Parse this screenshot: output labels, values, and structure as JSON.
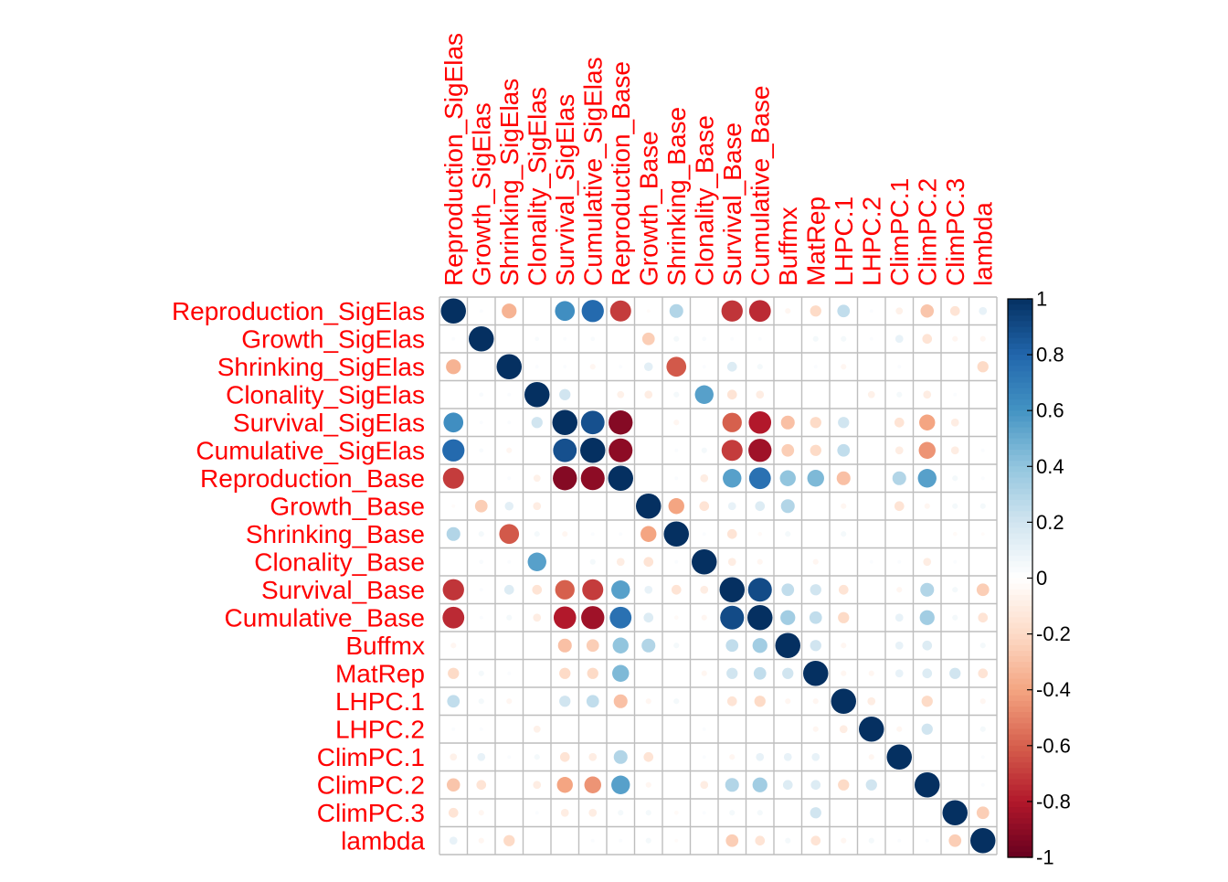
{
  "chart_data": {
    "type": "heatmap",
    "method": "circle",
    "order": "original",
    "variables": [
      "Reproduction_SigElas",
      "Growth_SigElas",
      "Shrinking_SigElas",
      "Clonality_SigElas",
      "Survival_SigElas",
      "Cumulative_SigElas",
      "Reproduction_Base",
      "Growth_Base",
      "Shrinking_Base",
      "Clonality_Base",
      "Survival_Base",
      "Cumulative_Base",
      "Buffmx",
      "MatRep",
      "LHPC.1",
      "LHPC.2",
      "ClimPC.1",
      "ClimPC.2",
      "ClimPC.3",
      "lambda"
    ],
    "matrix": [
      [
        1.0,
        0.02,
        -0.35,
        0.0,
        0.62,
        0.78,
        -0.7,
        -0.02,
        0.3,
        0.0,
        -0.72,
        -0.75,
        -0.05,
        -0.2,
        0.25,
        0.02,
        -0.08,
        -0.28,
        -0.15,
        0.1
      ],
      [
        0.02,
        1.0,
        0.0,
        0.03,
        0.02,
        0.03,
        0.0,
        -0.25,
        0.05,
        0.03,
        0.02,
        0.02,
        0.0,
        0.05,
        0.05,
        0.02,
        0.1,
        -0.15,
        -0.05,
        -0.05
      ],
      [
        -0.35,
        0.0,
        1.0,
        0.02,
        0.02,
        -0.05,
        0.02,
        0.12,
        -0.62,
        0.02,
        0.15,
        0.05,
        0.0,
        0.02,
        -0.05,
        0.0,
        0.02,
        0.0,
        0.0,
        -0.2
      ],
      [
        0.0,
        0.03,
        0.02,
        1.0,
        0.2,
        0.0,
        -0.08,
        -0.1,
        0.05,
        0.55,
        -0.15,
        -0.1,
        0.0,
        0.0,
        0.0,
        -0.08,
        0.05,
        -0.1,
        0.02,
        0.0
      ],
      [
        0.62,
        0.02,
        0.02,
        0.2,
        1.0,
        0.88,
        -0.92,
        0.0,
        -0.05,
        0.0,
        -0.6,
        -0.8,
        -0.3,
        -0.2,
        0.2,
        0.0,
        -0.15,
        -0.4,
        -0.1,
        0.0
      ],
      [
        0.78,
        0.03,
        -0.05,
        0.0,
        0.88,
        1.0,
        -0.9,
        0.0,
        0.02,
        0.05,
        -0.7,
        -0.85,
        -0.25,
        -0.2,
        0.25,
        0.0,
        -0.1,
        -0.45,
        -0.1,
        0.02
      ],
      [
        -0.7,
        0.0,
        0.02,
        -0.08,
        -0.92,
        -0.9,
        1.0,
        0.0,
        0.02,
        -0.1,
        0.55,
        0.75,
        0.4,
        0.45,
        -0.3,
        0.0,
        0.3,
        0.55,
        0.05,
        0.02
      ],
      [
        -0.02,
        -0.25,
        0.12,
        -0.1,
        0.0,
        0.0,
        0.0,
        1.0,
        -0.4,
        -0.15,
        0.1,
        0.15,
        0.3,
        0.0,
        -0.05,
        0.0,
        -0.15,
        -0.05,
        0.05,
        0.05
      ],
      [
        0.3,
        0.05,
        -0.62,
        0.05,
        -0.05,
        0.02,
        0.02,
        -0.4,
        1.0,
        0.02,
        -0.15,
        -0.03,
        0.05,
        0.0,
        0.05,
        0.0,
        0.0,
        0.0,
        -0.03,
        -0.02
      ],
      [
        0.0,
        0.03,
        0.02,
        0.55,
        0.0,
        0.05,
        -0.1,
        -0.15,
        0.02,
        1.0,
        -0.1,
        -0.05,
        0.0,
        -0.05,
        0.0,
        0.02,
        0.02,
        -0.1,
        0.02,
        0.0
      ],
      [
        -0.72,
        0.02,
        0.15,
        -0.15,
        -0.6,
        -0.7,
        0.55,
        0.1,
        -0.15,
        -0.1,
        1.0,
        0.9,
        0.25,
        0.2,
        -0.15,
        0.0,
        -0.05,
        0.3,
        0.05,
        -0.25
      ],
      [
        -0.75,
        0.02,
        0.05,
        -0.1,
        -0.8,
        -0.85,
        0.75,
        0.15,
        -0.03,
        -0.05,
        0.9,
        1.0,
        0.35,
        0.25,
        -0.2,
        0.0,
        0.1,
        0.35,
        0.05,
        -0.15
      ],
      [
        -0.05,
        0.0,
        0.0,
        0.0,
        -0.3,
        -0.25,
        0.4,
        0.3,
        0.05,
        0.0,
        0.25,
        0.35,
        1.0,
        0.2,
        -0.05,
        0.0,
        0.1,
        0.15,
        0.0,
        0.05
      ],
      [
        -0.2,
        0.05,
        0.02,
        0.0,
        -0.2,
        -0.2,
        0.45,
        0.0,
        0.0,
        -0.05,
        0.2,
        0.25,
        0.2,
        1.0,
        -0.05,
        -0.05,
        0.1,
        0.15,
        0.2,
        -0.15
      ],
      [
        0.25,
        0.05,
        -0.05,
        0.0,
        0.2,
        0.25,
        -0.3,
        -0.05,
        0.05,
        0.0,
        -0.15,
        -0.2,
        -0.05,
        -0.05,
        1.0,
        -0.1,
        0.0,
        -0.2,
        0.0,
        -0.05
      ],
      [
        0.02,
        0.02,
        0.0,
        -0.08,
        0.0,
        0.0,
        0.0,
        0.0,
        0.0,
        0.02,
        0.0,
        0.0,
        0.0,
        -0.05,
        -0.1,
        1.0,
        -0.05,
        0.2,
        0.0,
        0.05
      ],
      [
        -0.08,
        0.1,
        0.02,
        0.05,
        -0.15,
        -0.1,
        0.3,
        -0.15,
        0.0,
        0.02,
        -0.05,
        0.1,
        0.1,
        0.1,
        0.0,
        -0.05,
        1.0,
        0.0,
        0.0,
        0.02
      ],
      [
        -0.28,
        -0.15,
        0.0,
        -0.1,
        -0.4,
        -0.45,
        0.55,
        -0.05,
        0.0,
        -0.1,
        0.3,
        0.35,
        0.15,
        0.15,
        -0.2,
        0.2,
        0.0,
        1.0,
        0.0,
        0.02
      ],
      [
        -0.15,
        -0.05,
        0.0,
        0.02,
        -0.1,
        -0.1,
        0.05,
        0.05,
        -0.03,
        0.02,
        0.05,
        0.05,
        0.0,
        0.2,
        0.0,
        0.0,
        0.0,
        0.0,
        1.0,
        -0.25
      ],
      [
        0.1,
        -0.05,
        -0.2,
        0.0,
        0.0,
        0.02,
        0.02,
        0.05,
        -0.02,
        0.0,
        -0.25,
        -0.15,
        0.05,
        -0.15,
        -0.05,
        0.05,
        0.02,
        0.02,
        -0.25,
        1.0
      ]
    ],
    "color_scale": {
      "min": -1,
      "max": 1,
      "stops": [
        "#67001f",
        "#b2182b",
        "#d6604d",
        "#f4a582",
        "#fddbc7",
        "#ffffff",
        "#d1e5f0",
        "#92c5de",
        "#4393c3",
        "#2166ac",
        "#053061"
      ]
    },
    "legend": {
      "position": "right",
      "ticks": [
        "1",
        "0.8",
        "0.6",
        "0.4",
        "0.2",
        "0",
        "-0.2",
        "-0.4",
        "-0.6",
        "-0.8",
        "-1"
      ]
    },
    "grid": true,
    "grid_color": "#bebebe",
    "label_color": "#ff0000"
  }
}
